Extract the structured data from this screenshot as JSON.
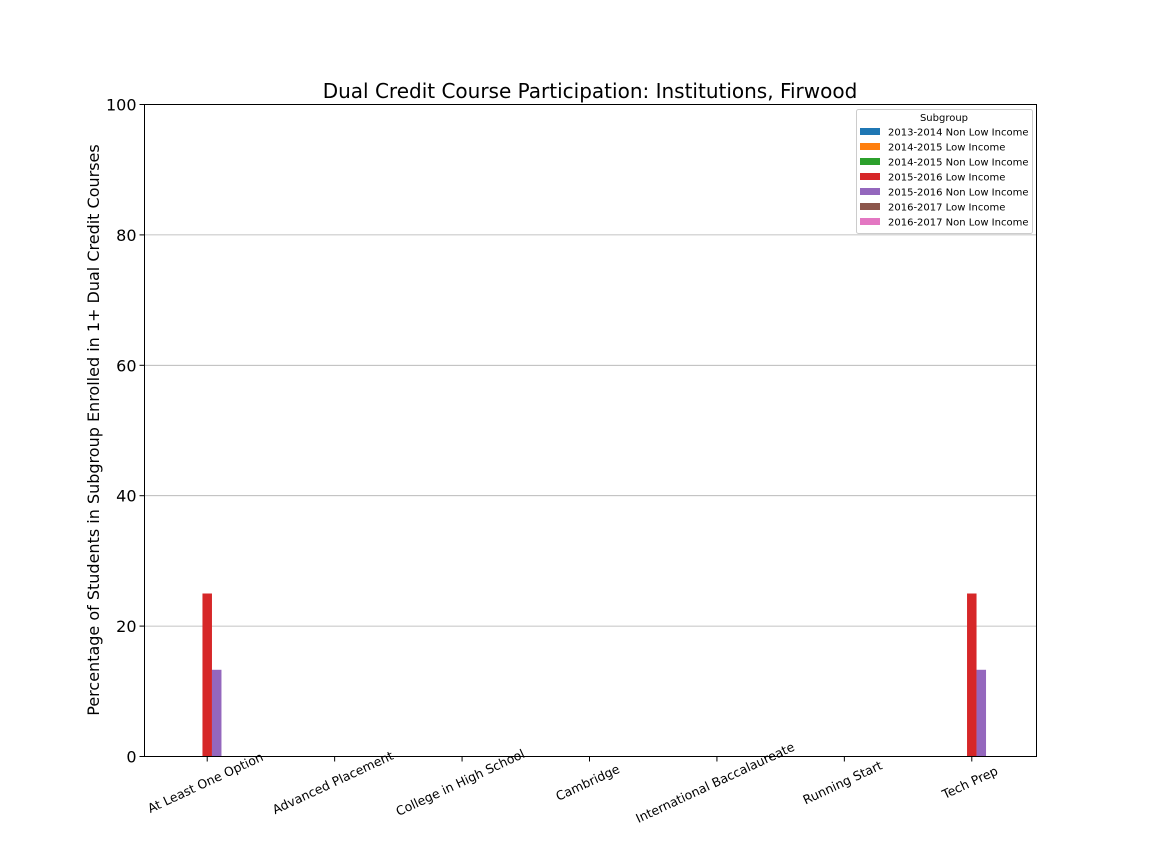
{
  "chart_data": {
    "type": "bar",
    "title": "Dual Credit Course Participation: Institutions, Firwood",
    "xlabel": "",
    "ylabel": "Percentage of Students in Subgroup Enrolled in 1+ Dual Credit Courses",
    "ylim": [
      0,
      100
    ],
    "yticks": [
      0,
      20,
      40,
      60,
      80,
      100
    ],
    "grid": "horizontal",
    "legend_title": "Subgroup",
    "legend_position": "top-right",
    "categories": [
      "At Least One Option",
      "Advanced Placement",
      "College in High School",
      "Cambridge",
      "International Baccalaureate",
      "Running Start",
      "Tech Prep"
    ],
    "series": [
      {
        "name": "2013-2014 Non Low Income",
        "color": "#1f77b4",
        "values": [
          0,
          0,
          0,
          0,
          0,
          0,
          0
        ]
      },
      {
        "name": "2014-2015 Low Income",
        "color": "#ff7f0e",
        "values": [
          0,
          0,
          0,
          0,
          0,
          0,
          0
        ]
      },
      {
        "name": "2014-2015 Non Low Income",
        "color": "#2ca02c",
        "values": [
          0,
          0,
          0,
          0,
          0,
          0,
          0
        ]
      },
      {
        "name": "2015-2016 Low Income",
        "color": "#d62728",
        "values": [
          25,
          0,
          0,
          0,
          0,
          0,
          25
        ]
      },
      {
        "name": "2015-2016 Non Low Income",
        "color": "#9467bd",
        "values": [
          13.3,
          0,
          0,
          0,
          0,
          0,
          13.3
        ]
      },
      {
        "name": "2016-2017 Low Income",
        "color": "#8c564b",
        "values": [
          0,
          0,
          0,
          0,
          0,
          0,
          0
        ]
      },
      {
        "name": "2016-2017 Non Low Income",
        "color": "#e377c2",
        "values": [
          0,
          0,
          0,
          0,
          0,
          0,
          0
        ]
      }
    ]
  }
}
